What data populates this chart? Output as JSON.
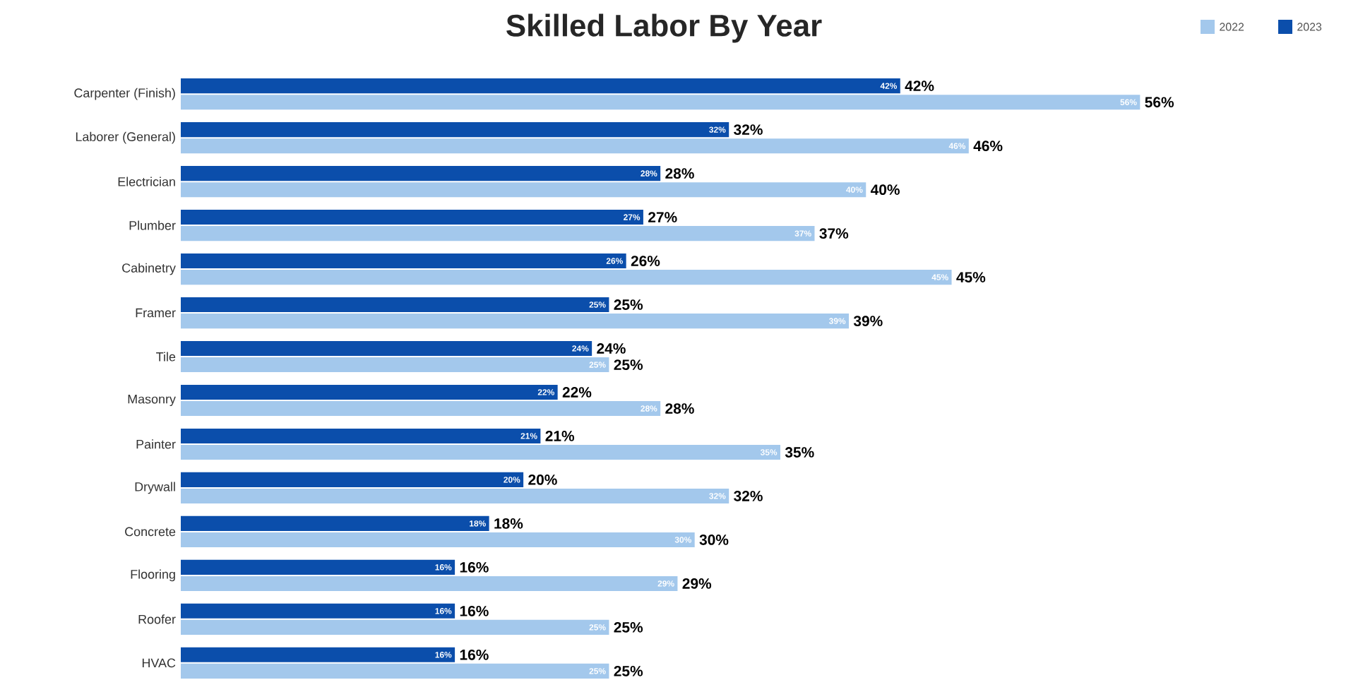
{
  "chart_data": {
    "type": "bar",
    "orientation": "horizontal",
    "title": "Skilled Labor By Year",
    "categories": [
      "Carpenter (Finish)",
      "Laborer (General)",
      "Electrician",
      "Plumber",
      "Cabinetry",
      "Framer",
      "Tile",
      "Masonry",
      "Painter",
      "Drywall",
      "Concrete",
      "Flooring",
      "Roofer",
      "HVAC"
    ],
    "series": [
      {
        "name": "2022",
        "color": "#a3c8ec",
        "values": [
          56,
          46,
          40,
          37,
          45,
          39,
          25,
          28,
          35,
          32,
          30,
          29,
          25,
          25
        ],
        "value_labels": [
          "56%",
          "46%",
          "40%",
          "37%",
          "45%",
          "39%",
          "25%",
          "28%",
          "35%",
          "32%",
          "30%",
          "29%",
          "25%",
          "25%"
        ]
      },
      {
        "name": "2023",
        "color": "#0b4eab",
        "values": [
          42,
          32,
          28,
          27,
          26,
          25,
          24,
          22,
          21,
          20,
          18,
          16,
          16,
          16
        ],
        "value_labels": [
          "42%",
          "32%",
          "28%",
          "27%",
          "26%",
          "25%",
          "24%",
          "22%",
          "21%",
          "20%",
          "18%",
          "16%",
          "16%",
          "16%"
        ]
      }
    ],
    "legend": "top right",
    "tick_labels": "y"
  }
}
